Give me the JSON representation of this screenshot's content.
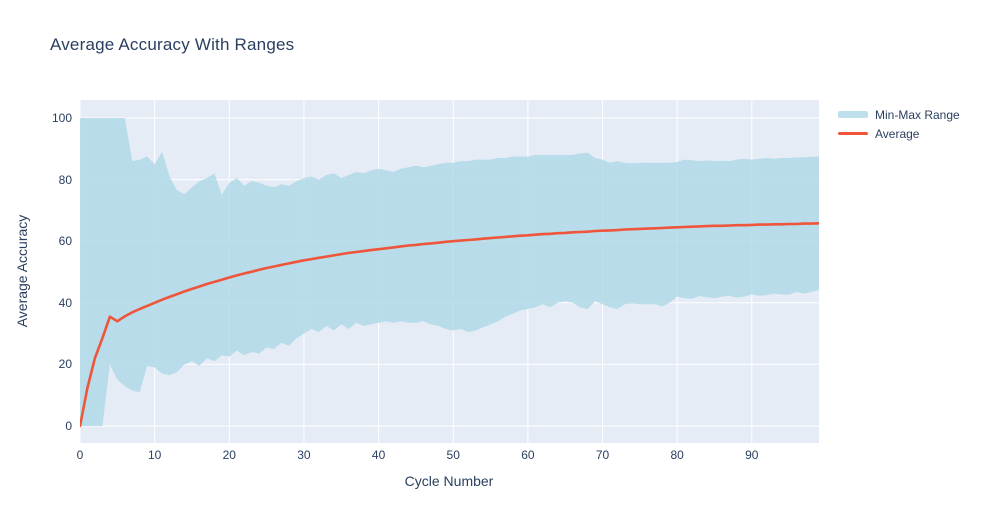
{
  "page": {
    "title": "Average Accuracy With Ranges"
  },
  "colors": {
    "text": "#2a3f5f",
    "plot_bg": "#e5ecf6",
    "grid": "#ffffff",
    "band_fill": "#add8e6",
    "band_opacity": 0.8,
    "line": "#ef553b"
  },
  "legend": {
    "items": [
      {
        "label": "Min-Max Range",
        "swatch": "band"
      },
      {
        "label": "Average",
        "swatch": "line"
      }
    ]
  },
  "chart_data": {
    "type": "area",
    "title": "Average Accuracy With Ranges",
    "xlabel": "Cycle Number",
    "ylabel": "Average Accuracy",
    "x_range": [
      0,
      99
    ],
    "y_range": [
      -5.5,
      105.8
    ],
    "xticks": [
      0,
      10,
      20,
      30,
      40,
      50,
      60,
      70,
      80,
      90
    ],
    "yticks": [
      0,
      20,
      40,
      60,
      80,
      100
    ],
    "grid": true,
    "legend_position": "outside-top-right",
    "x": [
      0,
      1,
      2,
      3,
      4,
      5,
      6,
      7,
      8,
      9,
      10,
      11,
      12,
      13,
      14,
      15,
      16,
      17,
      18,
      19,
      20,
      21,
      22,
      23,
      24,
      25,
      26,
      27,
      28,
      29,
      30,
      31,
      32,
      33,
      34,
      35,
      36,
      37,
      38,
      39,
      40,
      41,
      42,
      43,
      44,
      45,
      46,
      47,
      48,
      49,
      50,
      51,
      52,
      53,
      54,
      55,
      56,
      57,
      58,
      59,
      60,
      61,
      62,
      63,
      64,
      65,
      66,
      67,
      68,
      69,
      70,
      71,
      72,
      73,
      74,
      75,
      76,
      77,
      78,
      79,
      80,
      81,
      82,
      83,
      84,
      85,
      86,
      87,
      88,
      89,
      90,
      91,
      92,
      93,
      94,
      95,
      96,
      97,
      98,
      99
    ],
    "series": [
      {
        "name": "Min-Max Range",
        "type": "band",
        "max": [
          100,
          100,
          100,
          100,
          100,
          100,
          100,
          86,
          86.5,
          87.5,
          85,
          89,
          81,
          76.5,
          75.3,
          77.5,
          79.5,
          80.5,
          82,
          75,
          79,
          80.5,
          78,
          79.5,
          79,
          78,
          77.5,
          78.5,
          78,
          79.5,
          80.5,
          81,
          80,
          81.5,
          82,
          80.5,
          81.5,
          82.5,
          82,
          83,
          83.5,
          83,
          82.5,
          83.5,
          84,
          84.5,
          84,
          84.5,
          85,
          85.5,
          85.5,
          86,
          86,
          86.5,
          86.5,
          86.5,
          87,
          87,
          87.5,
          87.5,
          87.5,
          88,
          88,
          88,
          88,
          88,
          88,
          88.5,
          88.7,
          87,
          86.5,
          85.5,
          86,
          85.5,
          85.3,
          85.5,
          85.5,
          85.4,
          85.5,
          85.5,
          85.7,
          86.5,
          86.3,
          86,
          86.2,
          86,
          86.1,
          86,
          86.5,
          86.8,
          86.5,
          86.8,
          87,
          86.8,
          87,
          87,
          87.2,
          87.2,
          87.4,
          87.5
        ],
        "min": [
          0,
          0,
          0,
          0,
          20,
          15,
          13,
          11.5,
          11,
          19.5,
          19,
          17,
          16.5,
          17.5,
          20,
          21,
          19.5,
          22,
          21,
          23,
          22.5,
          24.5,
          23,
          24,
          23.5,
          25.5,
          25,
          27,
          26,
          28.5,
          30,
          31.5,
          30.5,
          32.5,
          31,
          33,
          31.5,
          33.5,
          32.5,
          33,
          33.5,
          34,
          33.5,
          34,
          33.5,
          33.5,
          34,
          33,
          32.5,
          31.5,
          31,
          31.5,
          30.5,
          31,
          32,
          33,
          34,
          35.5,
          36.5,
          37.5,
          38,
          38.5,
          39.5,
          38.5,
          40,
          40.5,
          40,
          38.5,
          38,
          40.5,
          39.5,
          38.5,
          38,
          39.5,
          39.8,
          39.5,
          39.5,
          39.5,
          38.8,
          40,
          42,
          41.5,
          41.3,
          42.2,
          41.8,
          41.5,
          42,
          42.3,
          41.7,
          42,
          42.8,
          42.3,
          42.5,
          43,
          42.7,
          42.7,
          43.5,
          43,
          43.5,
          44.2
        ]
      },
      {
        "name": "Average",
        "type": "line",
        "values": [
          0,
          12.5,
          22,
          28.5,
          35.5,
          34,
          35.6,
          36.9,
          38,
          39,
          40,
          41,
          41.9,
          42.8,
          43.7,
          44.5,
          45.3,
          46.1,
          46.8,
          47.5,
          48.2,
          48.9,
          49.5,
          50.1,
          50.7,
          51.3,
          51.8,
          52.3,
          52.8,
          53.3,
          53.8,
          54.2,
          54.6,
          55,
          55.4,
          55.8,
          56.2,
          56.5,
          56.8,
          57.1,
          57.4,
          57.7,
          58,
          58.3,
          58.6,
          58.8,
          59.1,
          59.3,
          59.5,
          59.8,
          60,
          60.2,
          60.4,
          60.6,
          60.8,
          61,
          61.2,
          61.4,
          61.6,
          61.8,
          61.9,
          62.1,
          62.3,
          62.4,
          62.6,
          62.7,
          62.9,
          63,
          63.1,
          63.3,
          63.4,
          63.5,
          63.6,
          63.8,
          63.9,
          64,
          64.1,
          64.2,
          64.3,
          64.4,
          64.5,
          64.6,
          64.7,
          64.8,
          64.9,
          65,
          65,
          65.1,
          65.2,
          65.2,
          65.3,
          65.4,
          65.4,
          65.5,
          65.5,
          65.6,
          65.6,
          65.7,
          65.7,
          65.8
        ]
      }
    ]
  }
}
